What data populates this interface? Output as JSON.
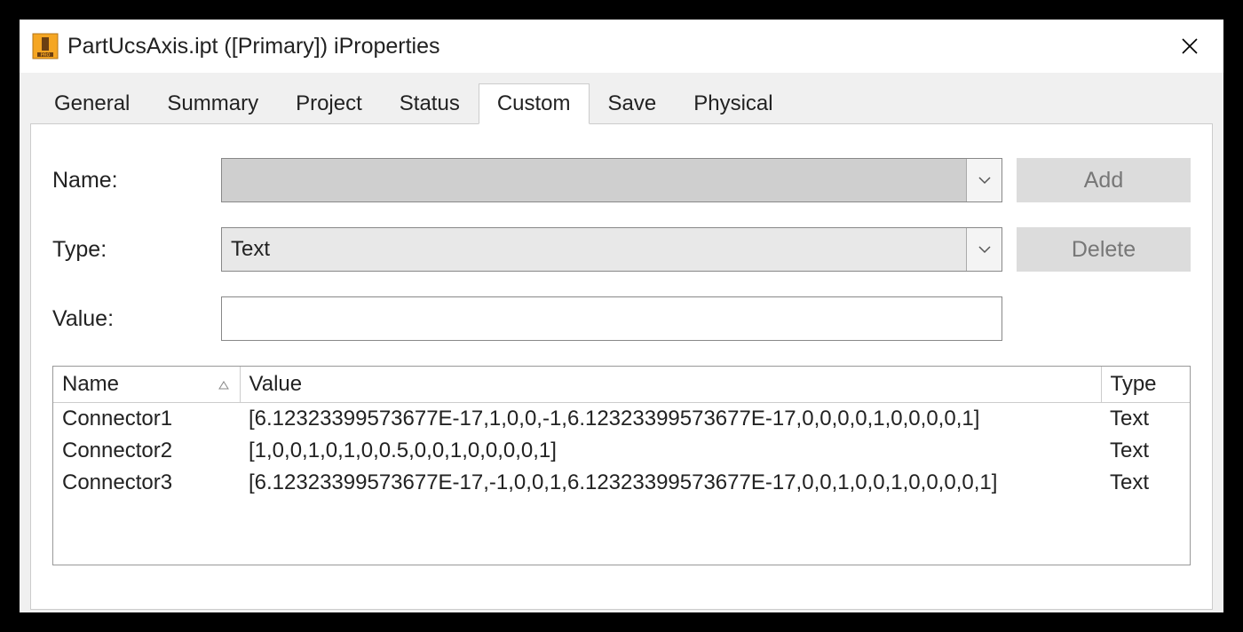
{
  "window": {
    "title": "PartUcsAxis.ipt ([Primary]) iProperties"
  },
  "tabs": {
    "items": [
      "General",
      "Summary",
      "Project",
      "Status",
      "Custom",
      "Save",
      "Physical"
    ],
    "active": "Custom"
  },
  "form": {
    "nameLabel": "Name:",
    "nameValue": "",
    "typeLabel": "Type:",
    "typeValue": "Text",
    "valueLabel": "Value:",
    "valueValue": "",
    "addLabel": "Add",
    "deleteLabel": "Delete"
  },
  "table": {
    "headers": {
      "name": "Name",
      "value": "Value",
      "type": "Type"
    },
    "rows": [
      {
        "name": "Connector1",
        "value": "[6.12323399573677E-17,1,0,0,-1,6.12323399573677E-17,0,0,0,0,1,0,0,0,0,1]",
        "type": "Text"
      },
      {
        "name": "Connector2",
        "value": "[1,0,0,1,0,1,0,0.5,0,0,1,0,0,0,0,1]",
        "type": "Text"
      },
      {
        "name": "Connector3",
        "value": "[6.12323399573677E-17,-1,0,0,1,6.12323399573677E-17,0,0,1,0,0,1,0,0,0,0,1]",
        "type": "Text"
      }
    ]
  },
  "colors": {
    "windowBg": "#ffffff",
    "bodyBg": "#000000",
    "contentBg": "#f0f0f0",
    "btnBg": "#dcdcdc",
    "btnText": "#777777",
    "iconOrange": "#f5a623",
    "border": "#888888"
  }
}
